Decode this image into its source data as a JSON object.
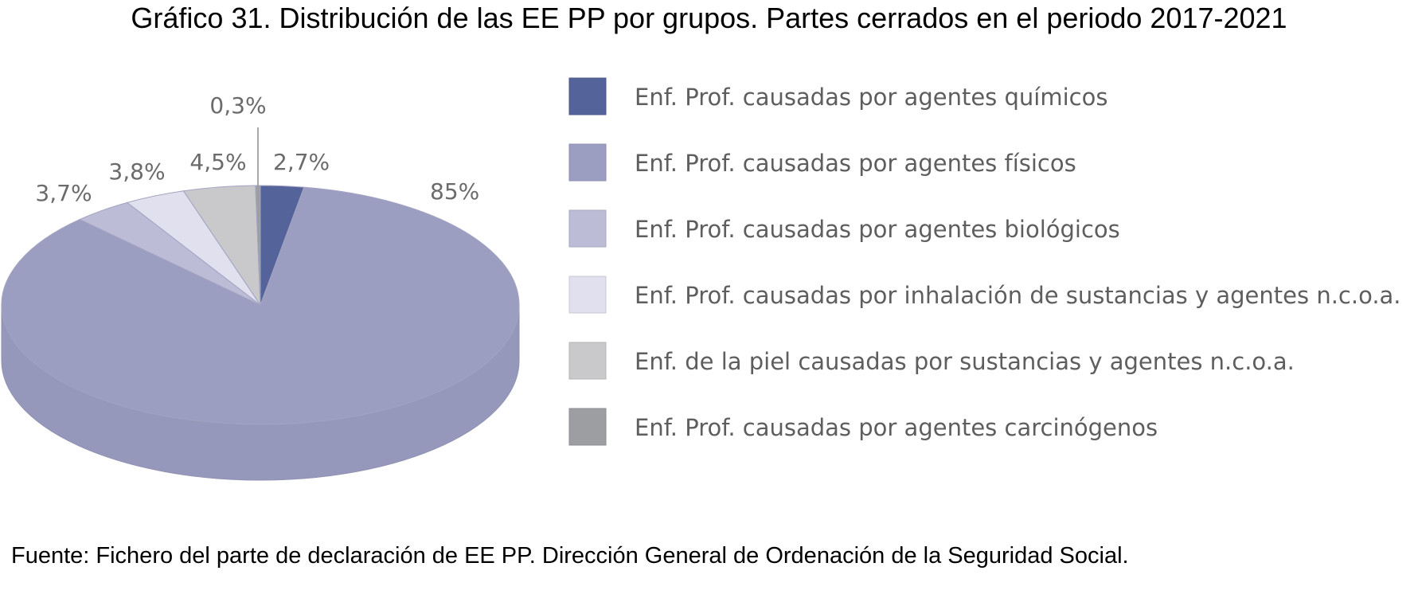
{
  "source_note": "Fuente: Fichero del parte de declaración de EE PP. Dirección General de Ordenación de la Seguridad Social.",
  "chart_data": {
    "type": "pie",
    "title": "Gráfico 31. Distribución de las EE PP por grupos. Partes cerrados en el periodo 2017-2021",
    "legend_position": "right",
    "slices": [
      {
        "name": "Enf. Prof. causadas por agentes químicos",
        "value": 2.7,
        "label": "2,7%",
        "color": "#55639b"
      },
      {
        "name": "Enf. Prof. causadas por agentes físicos",
        "value": 85,
        "label": "85%",
        "color": "#9b9dc1"
      },
      {
        "name": "Enf. Prof. causadas por agentes biológicos",
        "value": 3.7,
        "label": "3,7%",
        "color": "#bcbcd7"
      },
      {
        "name": "Enf. Prof. causadas por inhalación de sustancias y agentes n.c.o.a.",
        "value": 3.8,
        "label": "3,8%",
        "color": "#e0e0ee"
      },
      {
        "name": "Enf. de la piel causadas por sustancias y agentes n.c.o.a.",
        "value": 4.5,
        "label": "4,5%",
        "color": "#c9c9cb"
      },
      {
        "name": "Enf. Prof. causadas por agentes carcinógenos",
        "value": 0.3,
        "label": "0,3%",
        "color": "#9d9ea1"
      }
    ]
  }
}
